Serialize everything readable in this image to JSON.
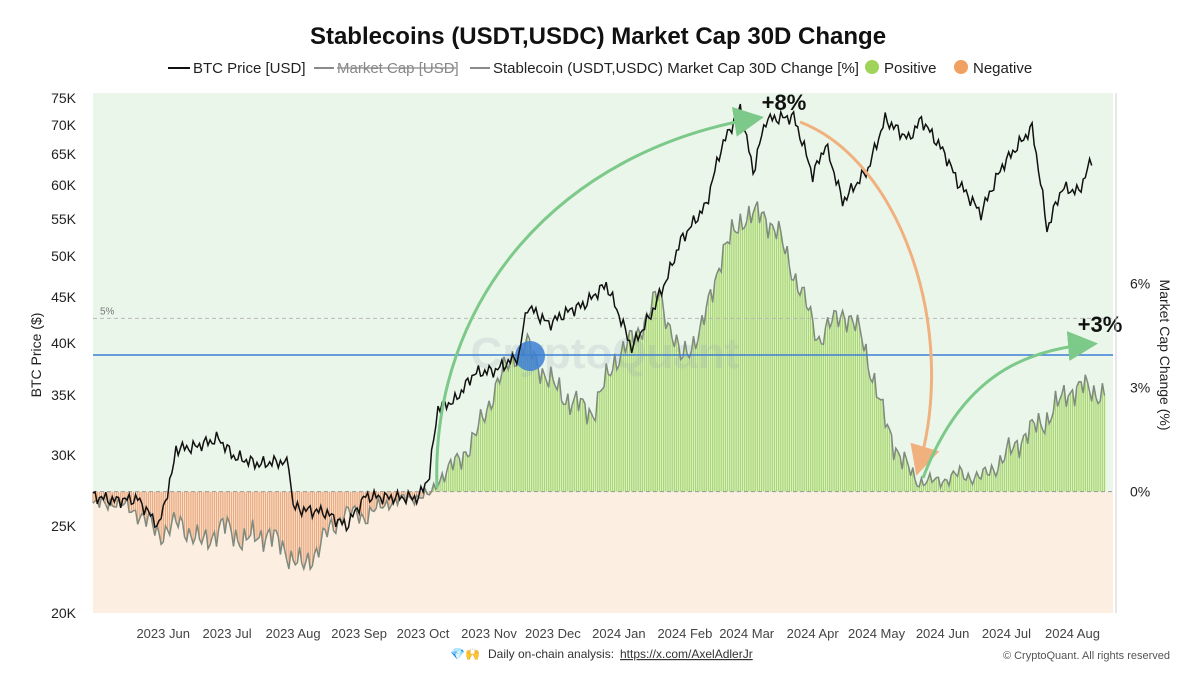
{
  "chart_data": {
    "type": "area",
    "title": "Stablecoins (USDT,USDC) Market Cap 30D Change",
    "legend": {
      "placement": "top",
      "items": [
        {
          "label": "BTC Price [USD]",
          "color": "#111111",
          "style": "line"
        },
        {
          "label": "Market Cap [USD]",
          "color": "#8a8a8a",
          "style": "line-struck"
        },
        {
          "label": "Stablecoin (USDT,USDC) Market Cap 30D Change [%]",
          "color": "#8a8a8a",
          "style": "line"
        },
        {
          "label": "Positive",
          "color": "#9fd35a",
          "style": "dot"
        },
        {
          "label": "Negative",
          "color": "#f0a060",
          "style": "dot"
        }
      ]
    },
    "y_left": {
      "label": "BTC Price ($)",
      "scale": "log",
      "range": [
        20000,
        76000
      ],
      "ticks": [
        {
          "value": 75000,
          "label": "75K"
        },
        {
          "value": 70000,
          "label": "70K"
        },
        {
          "value": 65000,
          "label": "65K"
        },
        {
          "value": 60000,
          "label": "60K"
        },
        {
          "value": 55000,
          "label": "55K"
        },
        {
          "value": 50000,
          "label": "50K"
        },
        {
          "value": 45000,
          "label": "45K"
        },
        {
          "value": 40000,
          "label": "40K"
        },
        {
          "value": 35000,
          "label": "35K"
        },
        {
          "value": 30000,
          "label": "30K"
        },
        {
          "value": 25000,
          "label": "25K"
        },
        {
          "value": 20000,
          "label": "20K"
        }
      ]
    },
    "y_right": {
      "label": "Market Cap Change (%)",
      "range": [
        -3.5,
        11.5
      ],
      "ticks": [
        {
          "value": 6,
          "label": "6%"
        },
        {
          "value": 3,
          "label": "3%"
        },
        {
          "value": 0,
          "label": "0%"
        }
      ],
      "reference_line": {
        "value": 5,
        "label": "5%"
      }
    },
    "x": {
      "range": [
        "2023-05-15",
        "2024-09-05"
      ],
      "ticks": [
        {
          "date": "2023-06-01",
          "label": "2023 Jun"
        },
        {
          "date": "2023-07-01",
          "label": "2023 Jul"
        },
        {
          "date": "2023-08-01",
          "label": "2023 Aug"
        },
        {
          "date": "2023-09-01",
          "label": "2023 Sep"
        },
        {
          "date": "2023-10-01",
          "label": "2023 Oct"
        },
        {
          "date": "2023-11-01",
          "label": "2023 Nov"
        },
        {
          "date": "2023-12-01",
          "label": "2023 Dec"
        },
        {
          "date": "2024-01-01",
          "label": "2024 Jan"
        },
        {
          "date": "2024-02-01",
          "label": "2024 Feb"
        },
        {
          "date": "2024-03-01",
          "label": "2024 Mar"
        },
        {
          "date": "2024-04-01",
          "label": "2024 Apr"
        },
        {
          "date": "2024-05-01",
          "label": "2024 May"
        },
        {
          "date": "2024-06-01",
          "label": "2024 Jun"
        },
        {
          "date": "2024-07-01",
          "label": "2024 Jul"
        },
        {
          "date": "2024-08-01",
          "label": "2024 Aug"
        }
      ]
    },
    "series": [
      {
        "name": "BTC Price [USD]",
        "color": "#111111",
        "points": [
          [
            "2023-05-15",
            27000
          ],
          [
            "2023-05-25",
            26700
          ],
          [
            "2023-06-05",
            26800
          ],
          [
            "2023-06-12",
            25500
          ],
          [
            "2023-06-15",
            25000
          ],
          [
            "2023-06-21",
            28500
          ],
          [
            "2023-06-23",
            30500
          ],
          [
            "2023-07-01",
            30600
          ],
          [
            "2023-07-13",
            31300
          ],
          [
            "2023-07-20",
            29900
          ],
          [
            "2023-08-01",
            29300
          ],
          [
            "2023-08-10",
            29500
          ],
          [
            "2023-08-15",
            29300
          ],
          [
            "2023-08-17",
            26300
          ],
          [
            "2023-08-20",
            26100
          ],
          [
            "2023-09-01",
            25900
          ],
          [
            "2023-09-11",
            25000
          ],
          [
            "2023-09-20",
            27000
          ],
          [
            "2023-09-30",
            26900
          ],
          [
            "2023-10-15",
            26900
          ],
          [
            "2023-10-20",
            28500
          ],
          [
            "2023-10-24",
            33900
          ],
          [
            "2023-11-01",
            34500
          ],
          [
            "2023-11-10",
            37000
          ],
          [
            "2023-11-20",
            37300
          ],
          [
            "2023-12-01",
            38700
          ],
          [
            "2023-12-05",
            44000
          ],
          [
            "2023-12-15",
            42000
          ],
          [
            "2023-12-25",
            43500
          ],
          [
            "2024-01-01",
            44200
          ],
          [
            "2024-01-11",
            46500
          ],
          [
            "2024-01-23",
            39500
          ],
          [
            "2024-02-01",
            43000
          ],
          [
            "2024-02-09",
            47500
          ],
          [
            "2024-02-15",
            52000
          ],
          [
            "2024-02-27",
            57000
          ],
          [
            "2024-03-05",
            66000
          ],
          [
            "2024-03-14",
            73000
          ],
          [
            "2024-03-20",
            62000
          ],
          [
            "2024-03-26",
            71000
          ],
          [
            "2024-04-08",
            71500
          ],
          [
            "2024-04-17",
            61500
          ],
          [
            "2024-04-23",
            66500
          ],
          [
            "2024-05-01",
            57500
          ],
          [
            "2024-05-13",
            62500
          ],
          [
            "2024-05-21",
            71000
          ],
          [
            "2024-06-01",
            67500
          ],
          [
            "2024-06-07",
            71000
          ],
          [
            "2024-06-18",
            65000
          ],
          [
            "2024-06-24",
            60500
          ],
          [
            "2024-07-05",
            55800
          ],
          [
            "2024-07-15",
            63000
          ],
          [
            "2024-07-29",
            69500
          ],
          [
            "2024-08-05",
            53500
          ],
          [
            "2024-08-12",
            59500
          ],
          [
            "2024-08-20",
            59000
          ],
          [
            "2024-08-26",
            64000
          ]
        ]
      },
      {
        "name": "Stablecoin (USDT,USDC) Market Cap 30D Change [%]",
        "color": "#7f8a7f",
        "points": [
          [
            "2023-05-15",
            -0.4
          ],
          [
            "2023-05-25",
            -0.3
          ],
          [
            "2023-06-05",
            -0.6
          ],
          [
            "2023-06-15",
            -1.2
          ],
          [
            "2023-06-25",
            -0.9
          ],
          [
            "2023-07-05",
            -1.5
          ],
          [
            "2023-07-15",
            -1.0
          ],
          [
            "2023-07-25",
            -1.4
          ],
          [
            "2023-08-05",
            -1.2
          ],
          [
            "2023-08-15",
            -1.8
          ],
          [
            "2023-08-22",
            -2.2
          ],
          [
            "2023-09-01",
            -1.3
          ],
          [
            "2023-09-10",
            -0.6
          ],
          [
            "2023-09-20",
            -0.7
          ],
          [
            "2023-10-01",
            -0.3
          ],
          [
            "2023-10-10",
            -0.2
          ],
          [
            "2023-10-20",
            -0.1
          ],
          [
            "2023-10-25",
            0.4
          ],
          [
            "2023-11-01",
            0.8
          ],
          [
            "2023-11-10",
            1.5
          ],
          [
            "2023-11-20",
            3.0
          ],
          [
            "2023-11-28",
            3.9
          ],
          [
            "2023-12-05",
            4.2
          ],
          [
            "2023-12-15",
            3.2
          ],
          [
            "2023-12-25",
            2.6
          ],
          [
            "2024-01-05",
            2.3
          ],
          [
            "2024-01-15",
            3.8
          ],
          [
            "2024-01-25",
            4.5
          ],
          [
            "2024-02-05",
            5.7
          ],
          [
            "2024-02-15",
            3.8
          ],
          [
            "2024-02-25",
            4.7
          ],
          [
            "2024-03-05",
            6.8
          ],
          [
            "2024-03-15",
            7.9
          ],
          [
            "2024-03-25",
            8.0
          ],
          [
            "2024-04-01",
            7.4
          ],
          [
            "2024-04-10",
            6.0
          ],
          [
            "2024-04-20",
            4.4
          ],
          [
            "2024-05-01",
            5.2
          ],
          [
            "2024-05-10",
            4.5
          ],
          [
            "2024-05-20",
            2.2
          ],
          [
            "2024-05-28",
            1.0
          ],
          [
            "2024-06-05",
            0.3
          ],
          [
            "2024-06-15",
            0.3
          ],
          [
            "2024-06-25",
            0.5
          ],
          [
            "2024-07-05",
            0.4
          ],
          [
            "2024-07-15",
            0.9
          ],
          [
            "2024-07-25",
            1.6
          ],
          [
            "2024-08-05",
            2.1
          ],
          [
            "2024-08-15",
            2.9
          ],
          [
            "2024-08-22",
            3.0
          ],
          [
            "2024-09-01",
            2.8
          ]
        ]
      }
    ],
    "annotations": [
      {
        "text": "+8%",
        "date": "2024-03-27",
        "value_pct": 8.5
      },
      {
        "text": "+3%",
        "date": "2024-08-25",
        "value_pct": 3.5
      }
    ]
  },
  "watermark": "CryptoQuant",
  "footer": {
    "emoji": "💎🙌",
    "text": "Daily on-chain analysis:",
    "link": "https://x.com/AxelAdlerJr",
    "copyright": "© CryptoQuant. All rights reserved"
  },
  "colors": {
    "positive_bg": "#eaf6ea",
    "negative_bg": "#fdeee2",
    "positive_bar": "#9fd35a",
    "negative_bar": "#e8a070",
    "arrow_green": "#7cc98a",
    "arrow_orange": "#f1b17f",
    "blue_line": "#3d7fd4"
  }
}
